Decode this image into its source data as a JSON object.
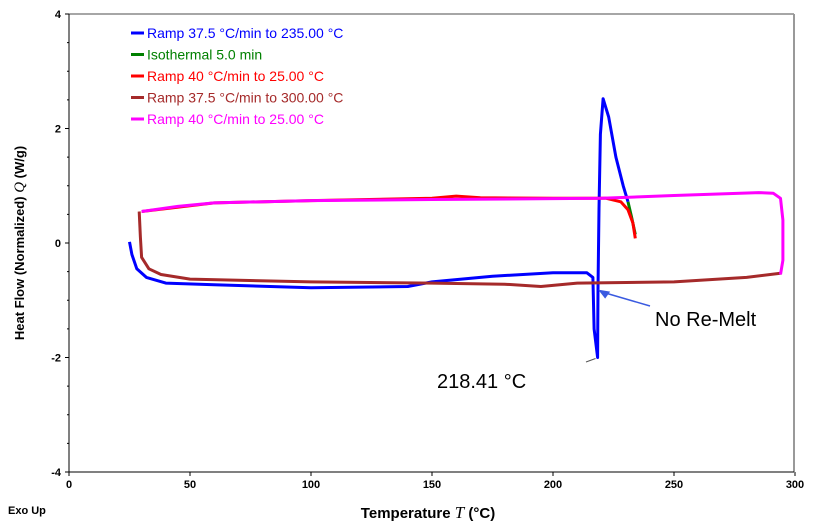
{
  "chart_data": {
    "type": "line",
    "xlabel": "Temperature",
    "xlabel_symbol": "T",
    "xlabel_unit": "(°C)",
    "ylabel": "Heat Flow (Normalized)",
    "ylabel_symbol": "Q",
    "ylabel_unit": "(W/g)",
    "xlim": [
      0,
      300
    ],
    "ylim": [
      -4,
      4
    ],
    "xticks": [
      0,
      50,
      100,
      150,
      200,
      250,
      300
    ],
    "yticks": [
      -4,
      -2,
      0,
      2,
      4
    ],
    "corner_label": "Exo Up",
    "legend_position": "top-left",
    "series": [
      {
        "name": "Ramp 37.5 °C/min to 235.00 °C",
        "color": "#0000ff",
        "x": [
          25,
          26,
          28,
          32,
          40,
          60,
          100,
          140,
          150,
          175,
          200,
          214,
          216.5,
          217,
          218.41,
          218.6,
          219,
          219.6,
          220.7,
          223,
          226,
          229,
          231
        ],
        "y": [
          0.02,
          -0.2,
          -0.45,
          -0.6,
          -0.7,
          -0.73,
          -0.78,
          -0.76,
          -0.68,
          -0.58,
          -0.52,
          -0.52,
          -0.6,
          -1.5,
          -2.0,
          -0.8,
          0.6,
          1.9,
          2.52,
          2.2,
          1.5,
          1.0,
          0.72
        ]
      },
      {
        "name": "Isothermal 5.0 min",
        "color": "#008000",
        "x": [
          231,
          232.5,
          234
        ],
        "y": [
          0.72,
          0.45,
          0.15
        ]
      },
      {
        "name": "Ramp 40 °C/min to 25.00 °C",
        "color": "#ff0000",
        "x": [
          234,
          233,
          231,
          228,
          222,
          200,
          170,
          160,
          150,
          100,
          60,
          30
        ],
        "y": [
          0.08,
          0.35,
          0.58,
          0.72,
          0.78,
          0.78,
          0.79,
          0.82,
          0.78,
          0.74,
          0.7,
          0.55
        ]
      },
      {
        "name": "Ramp 37.5 °C/min to 300.00 °C",
        "color": "#a52a2a",
        "x": [
          29,
          29.5,
          30,
          33,
          38,
          50,
          100,
          150,
          180,
          195,
          210,
          250,
          280,
          294
        ],
        "y": [
          0.55,
          0.1,
          -0.25,
          -0.45,
          -0.55,
          -0.63,
          -0.68,
          -0.7,
          -0.72,
          -0.76,
          -0.7,
          -0.68,
          -0.6,
          -0.53
        ]
      },
      {
        "name": "Ramp 40 °C/min to 25.00 °C",
        "color": "#ff00ff",
        "x": [
          294,
          295,
          295,
          294,
          291,
          285,
          250,
          220,
          150,
          100,
          60,
          45,
          30
        ],
        "y": [
          -0.55,
          -0.3,
          0.4,
          0.78,
          0.87,
          0.88,
          0.83,
          0.78,
          0.76,
          0.74,
          0.7,
          0.64,
          0.55
        ]
      }
    ],
    "annotations": [
      {
        "text": "No Re-Melt",
        "points_to": [
          217,
          -0.78
        ]
      },
      {
        "text": "218.41 °C",
        "points_to": [
          218.41,
          -2.0
        ]
      }
    ]
  }
}
